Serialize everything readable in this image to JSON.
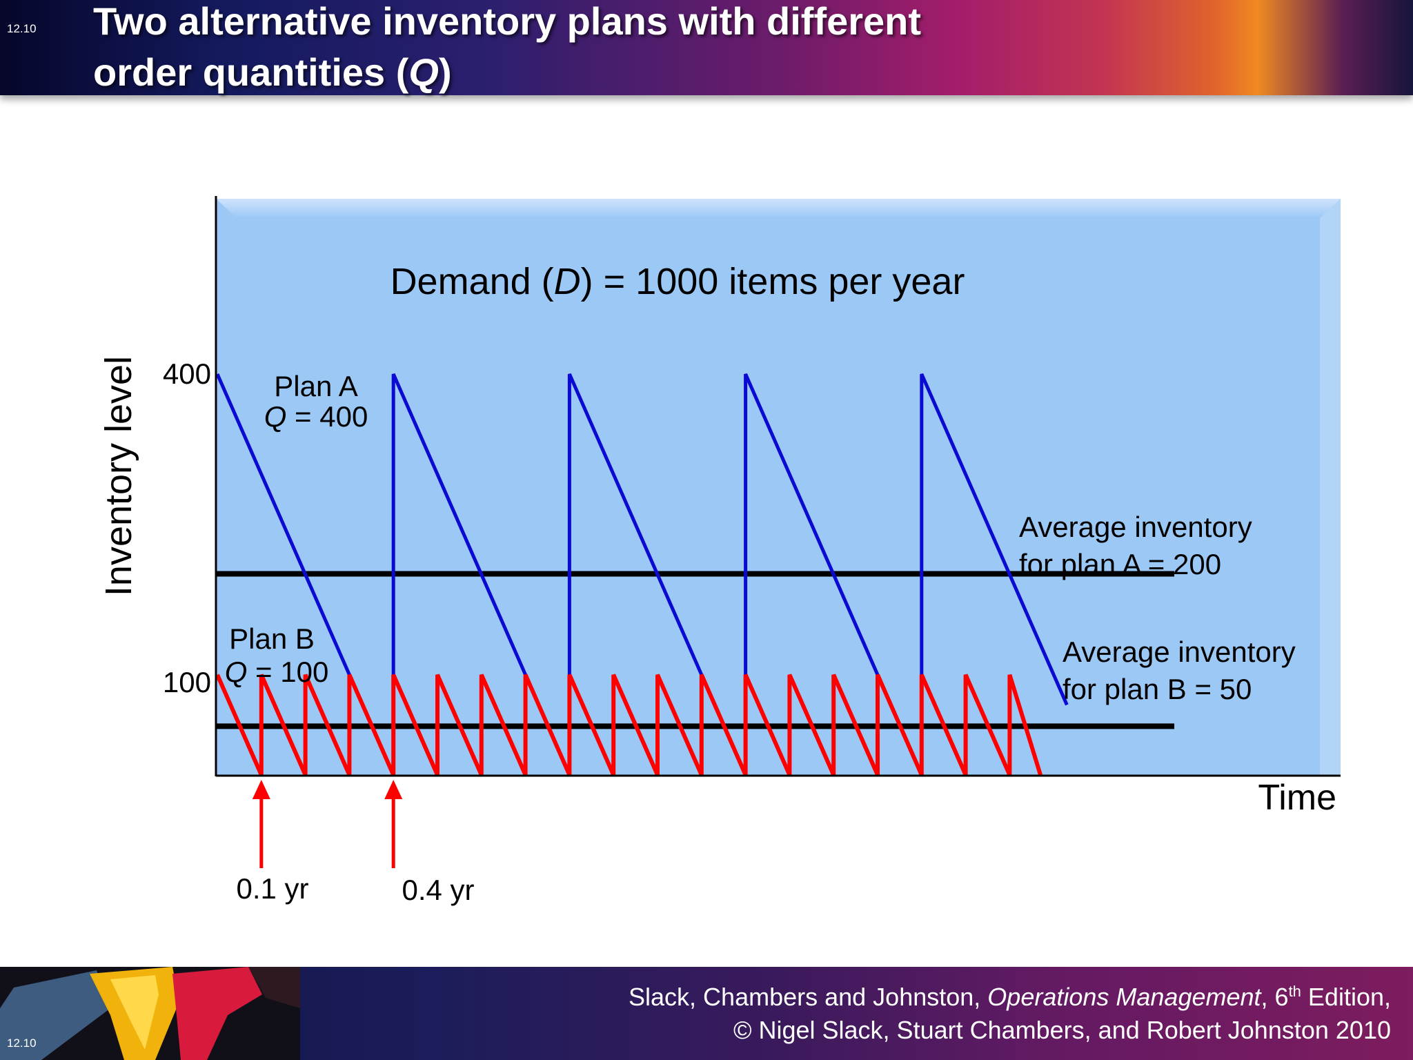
{
  "slide": {
    "number": "12.10"
  },
  "header": {
    "title_line1": "Two alternative inventory plans with different",
    "title_line2_pre": "order quantities (",
    "title_line2_var": "Q",
    "title_line2_post": ")"
  },
  "footer": {
    "line1_pre": "Slack, Chambers and Johnston, ",
    "line1_book": "Operations Management",
    "line1_edition_num": ", 6",
    "line1_edition_sup": "th",
    "line1_edition_post": " Edition,",
    "line2": "© Nigel Slack, Stuart Chambers, and Robert Johnston 2010"
  },
  "chart_data": {
    "type": "line",
    "title_pre": "Demand (",
    "title_var": "D",
    "title_post": ") = 1000 items per year",
    "xlabel": "Time",
    "ylabel": "Inventory level",
    "y_ticks": [
      "400",
      "100"
    ],
    "y_tick_values": [
      400,
      100
    ],
    "x_markers": [
      {
        "x": 0.1,
        "label": "0.1 yr"
      },
      {
        "x": 0.4,
        "label": "0.4 yr"
      }
    ],
    "series": [
      {
        "name_line1": "Plan A",
        "name_line2_var": "Q",
        "name_line2_rest": " = 400",
        "color": "#0a0ad2",
        "x": [
          0,
          0.4,
          0.4,
          0.8,
          0.8,
          1.2,
          1.2,
          1.6,
          1.6,
          1.93
        ],
        "y": [
          400,
          0,
          400,
          0,
          400,
          0,
          400,
          0,
          400,
          70
        ]
      },
      {
        "name_line1": "Plan B",
        "name_line2_var": "Q",
        "name_line2_rest": " = 100",
        "color": "#ff0000",
        "x": [
          0,
          0.1,
          0.1,
          0.2,
          0.2,
          0.3,
          0.3,
          0.4,
          0.4,
          0.5,
          0.5,
          0.6,
          0.6,
          0.7,
          0.7,
          0.8,
          0.8,
          0.9,
          0.9,
          1.0,
          1.0,
          1.1,
          1.1,
          1.2,
          1.2,
          1.3,
          1.3,
          1.4,
          1.4,
          1.5,
          1.5,
          1.6,
          1.6,
          1.7,
          1.7,
          1.8,
          1.8,
          1.87
        ],
        "y": [
          100,
          0,
          100,
          0,
          100,
          0,
          100,
          0,
          100,
          0,
          100,
          0,
          100,
          0,
          100,
          0,
          100,
          0,
          100,
          0,
          100,
          0,
          100,
          0,
          100,
          0,
          100,
          0,
          100,
          0,
          100,
          0,
          100,
          0,
          100,
          0,
          100,
          0
        ]
      }
    ],
    "averages": [
      {
        "line1": "Average inventory",
        "line2": "for plan A = 200",
        "value": 200
      },
      {
        "line1": "Average inventory",
        "line2": "for plan B = 50",
        "value": 50
      }
    ],
    "xlim": [
      0,
      2.0
    ],
    "ylim": [
      0,
      400
    ],
    "colors": {
      "plot_bg": "#9cc8f6",
      "axis": "#000000",
      "average_line": "#000000",
      "marker_arrow": "#ff0000"
    }
  }
}
